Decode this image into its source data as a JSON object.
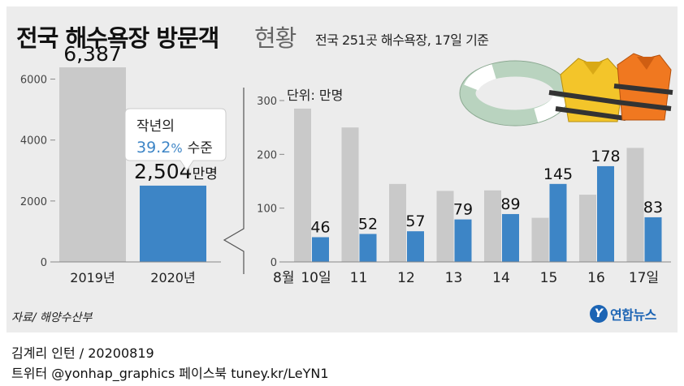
{
  "header": {
    "title_main": "전국 해수욕장 방문객",
    "title_sub": "현황",
    "note": "전국 251곳 해수욕장, 17일 기준"
  },
  "footer": {
    "source": "자료/ 해양수산부",
    "logo_text": "연합뉴스",
    "credit": "김계리 인턴 / 20200819",
    "social": "트위터 @yonhap_graphics  페이스북 tuney.kr/LeYN1"
  },
  "colors": {
    "gray_bar": "#c9c9c9",
    "blue_bar": "#3d85c6",
    "panel_bg": "#ececec",
    "accent_text": "#3d85c6"
  },
  "chart_data": [
    {
      "type": "bar",
      "categories": [
        "2019년",
        "2020년"
      ],
      "values": [
        6387,
        2504
      ],
      "data_labels": [
        "6,387",
        "2,504"
      ],
      "value_unit_label": "만명",
      "yticks": [
        0,
        2000,
        4000,
        6000
      ],
      "ytick_labels": [
        "0",
        "2000",
        "4000",
        "6000"
      ],
      "ylim": [
        0,
        7000
      ],
      "grid": false,
      "callout": {
        "line1": "작년의",
        "percent": "39.2",
        "percent_sign": "%",
        "suffix": "수준"
      }
    },
    {
      "type": "bar",
      "unit_label": "단위: 만명",
      "categories": [
        "10일",
        "11",
        "12",
        "13",
        "14",
        "15",
        "16",
        "17일"
      ],
      "month_label": "8월",
      "series": [
        {
          "values": [
            285,
            250,
            145,
            132,
            133,
            82,
            125,
            212
          ]
        },
        {
          "values": [
            46,
            52,
            57,
            79,
            89,
            145,
            178,
            83
          ]
        }
      ],
      "data_labels": [
        "46",
        "52",
        "57",
        "79",
        "89",
        "145",
        "178",
        "83"
      ],
      "yticks": [
        0,
        100,
        200,
        300
      ],
      "ytick_labels": [
        "0",
        "100",
        "200",
        "300"
      ],
      "ylim": [
        0,
        300
      ],
      "grid": false,
      "legend": "none"
    }
  ]
}
